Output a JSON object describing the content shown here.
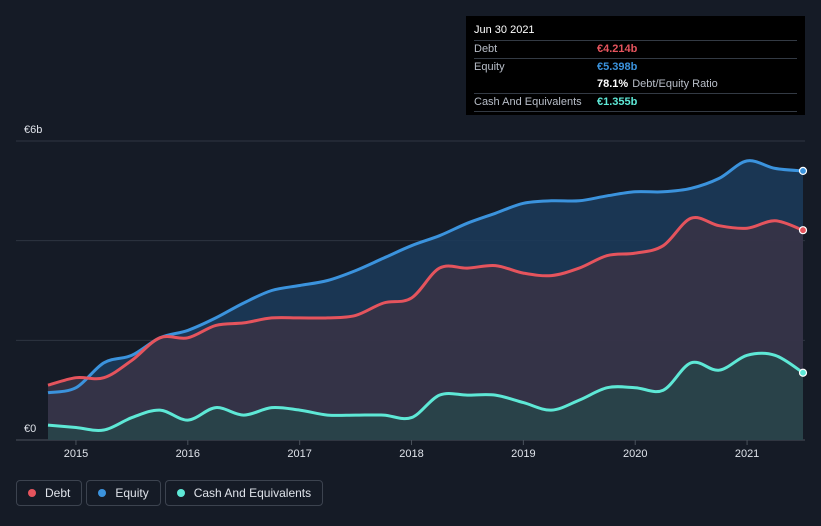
{
  "tooltip": {
    "date": "Jun 30 2021",
    "rows": [
      {
        "label": "Debt",
        "value": "€4.214b",
        "color": "#e5545d"
      },
      {
        "label": "Equity",
        "value": "€5.398b",
        "color": "#3b93dd"
      },
      {
        "label": "",
        "value": "78.1%",
        "color": "#ffffff",
        "suffix": "Debt/Equity Ratio"
      },
      {
        "label": "Cash And Equivalents",
        "value": "€1.355b",
        "color": "#5ee8d6"
      }
    ]
  },
  "legend": [
    {
      "label": "Debt",
      "color": "#e5545d"
    },
    {
      "label": "Equity",
      "color": "#3b93dd"
    },
    {
      "label": "Cash And Equivalents",
      "color": "#5ee8d6"
    }
  ],
  "chart_data": {
    "type": "area",
    "ylabel_top": "€6b",
    "ylabel_bottom": "€0",
    "ylim": [
      0,
      6
    ],
    "xlim": [
      2014.75,
      2021.5
    ],
    "x_ticks": [
      2015,
      2016,
      2017,
      2018,
      2019,
      2020,
      2021
    ],
    "x_tick_labels": [
      "2015",
      "2016",
      "2017",
      "2018",
      "2019",
      "2020",
      "2021"
    ],
    "grid": true,
    "series": [
      {
        "name": "Equity",
        "color": "#3b93dd",
        "x": [
          2014.75,
          2015.0,
          2015.25,
          2015.5,
          2015.75,
          2016.0,
          2016.25,
          2016.5,
          2016.75,
          2017.0,
          2017.25,
          2017.5,
          2017.75,
          2018.0,
          2018.25,
          2018.5,
          2018.75,
          2019.0,
          2019.25,
          2019.5,
          2019.75,
          2020.0,
          2020.25,
          2020.5,
          2020.75,
          2021.0,
          2021.25,
          2021.5
        ],
        "y": [
          0.95,
          1.05,
          1.55,
          1.7,
          2.05,
          2.2,
          2.45,
          2.75,
          3.0,
          3.1,
          3.2,
          3.4,
          3.65,
          3.9,
          4.1,
          4.35,
          4.55,
          4.75,
          4.8,
          4.8,
          4.9,
          4.98,
          4.98,
          5.05,
          5.25,
          5.6,
          5.45,
          5.4
        ]
      },
      {
        "name": "Debt",
        "color": "#e5545d",
        "x": [
          2014.75,
          2015.0,
          2015.25,
          2015.5,
          2015.75,
          2016.0,
          2016.25,
          2016.5,
          2016.75,
          2017.0,
          2017.25,
          2017.5,
          2017.75,
          2018.0,
          2018.25,
          2018.5,
          2018.75,
          2019.0,
          2019.25,
          2019.5,
          2019.75,
          2020.0,
          2020.25,
          2020.5,
          2020.75,
          2021.0,
          2021.25,
          2021.5
        ],
        "y": [
          1.1,
          1.25,
          1.25,
          1.6,
          2.05,
          2.05,
          2.3,
          2.35,
          2.45,
          2.45,
          2.45,
          2.5,
          2.75,
          2.85,
          3.45,
          3.45,
          3.5,
          3.35,
          3.3,
          3.45,
          3.7,
          3.75,
          3.9,
          4.45,
          4.3,
          4.25,
          4.4,
          4.21
        ]
      },
      {
        "name": "Cash And Equivalents",
        "color": "#5ee8d6",
        "x": [
          2014.75,
          2015.0,
          2015.25,
          2015.5,
          2015.75,
          2016.0,
          2016.25,
          2016.5,
          2016.75,
          2017.0,
          2017.25,
          2017.5,
          2017.75,
          2018.0,
          2018.25,
          2018.5,
          2018.75,
          2019.0,
          2019.25,
          2019.5,
          2019.75,
          2020.0,
          2020.25,
          2020.5,
          2020.75,
          2021.0,
          2021.25,
          2021.5
        ],
        "y": [
          0.3,
          0.25,
          0.2,
          0.45,
          0.6,
          0.4,
          0.65,
          0.5,
          0.65,
          0.6,
          0.5,
          0.5,
          0.5,
          0.45,
          0.9,
          0.9,
          0.9,
          0.75,
          0.6,
          0.8,
          1.05,
          1.05,
          1.0,
          1.55,
          1.4,
          1.7,
          1.7,
          1.35
        ]
      }
    ]
  }
}
